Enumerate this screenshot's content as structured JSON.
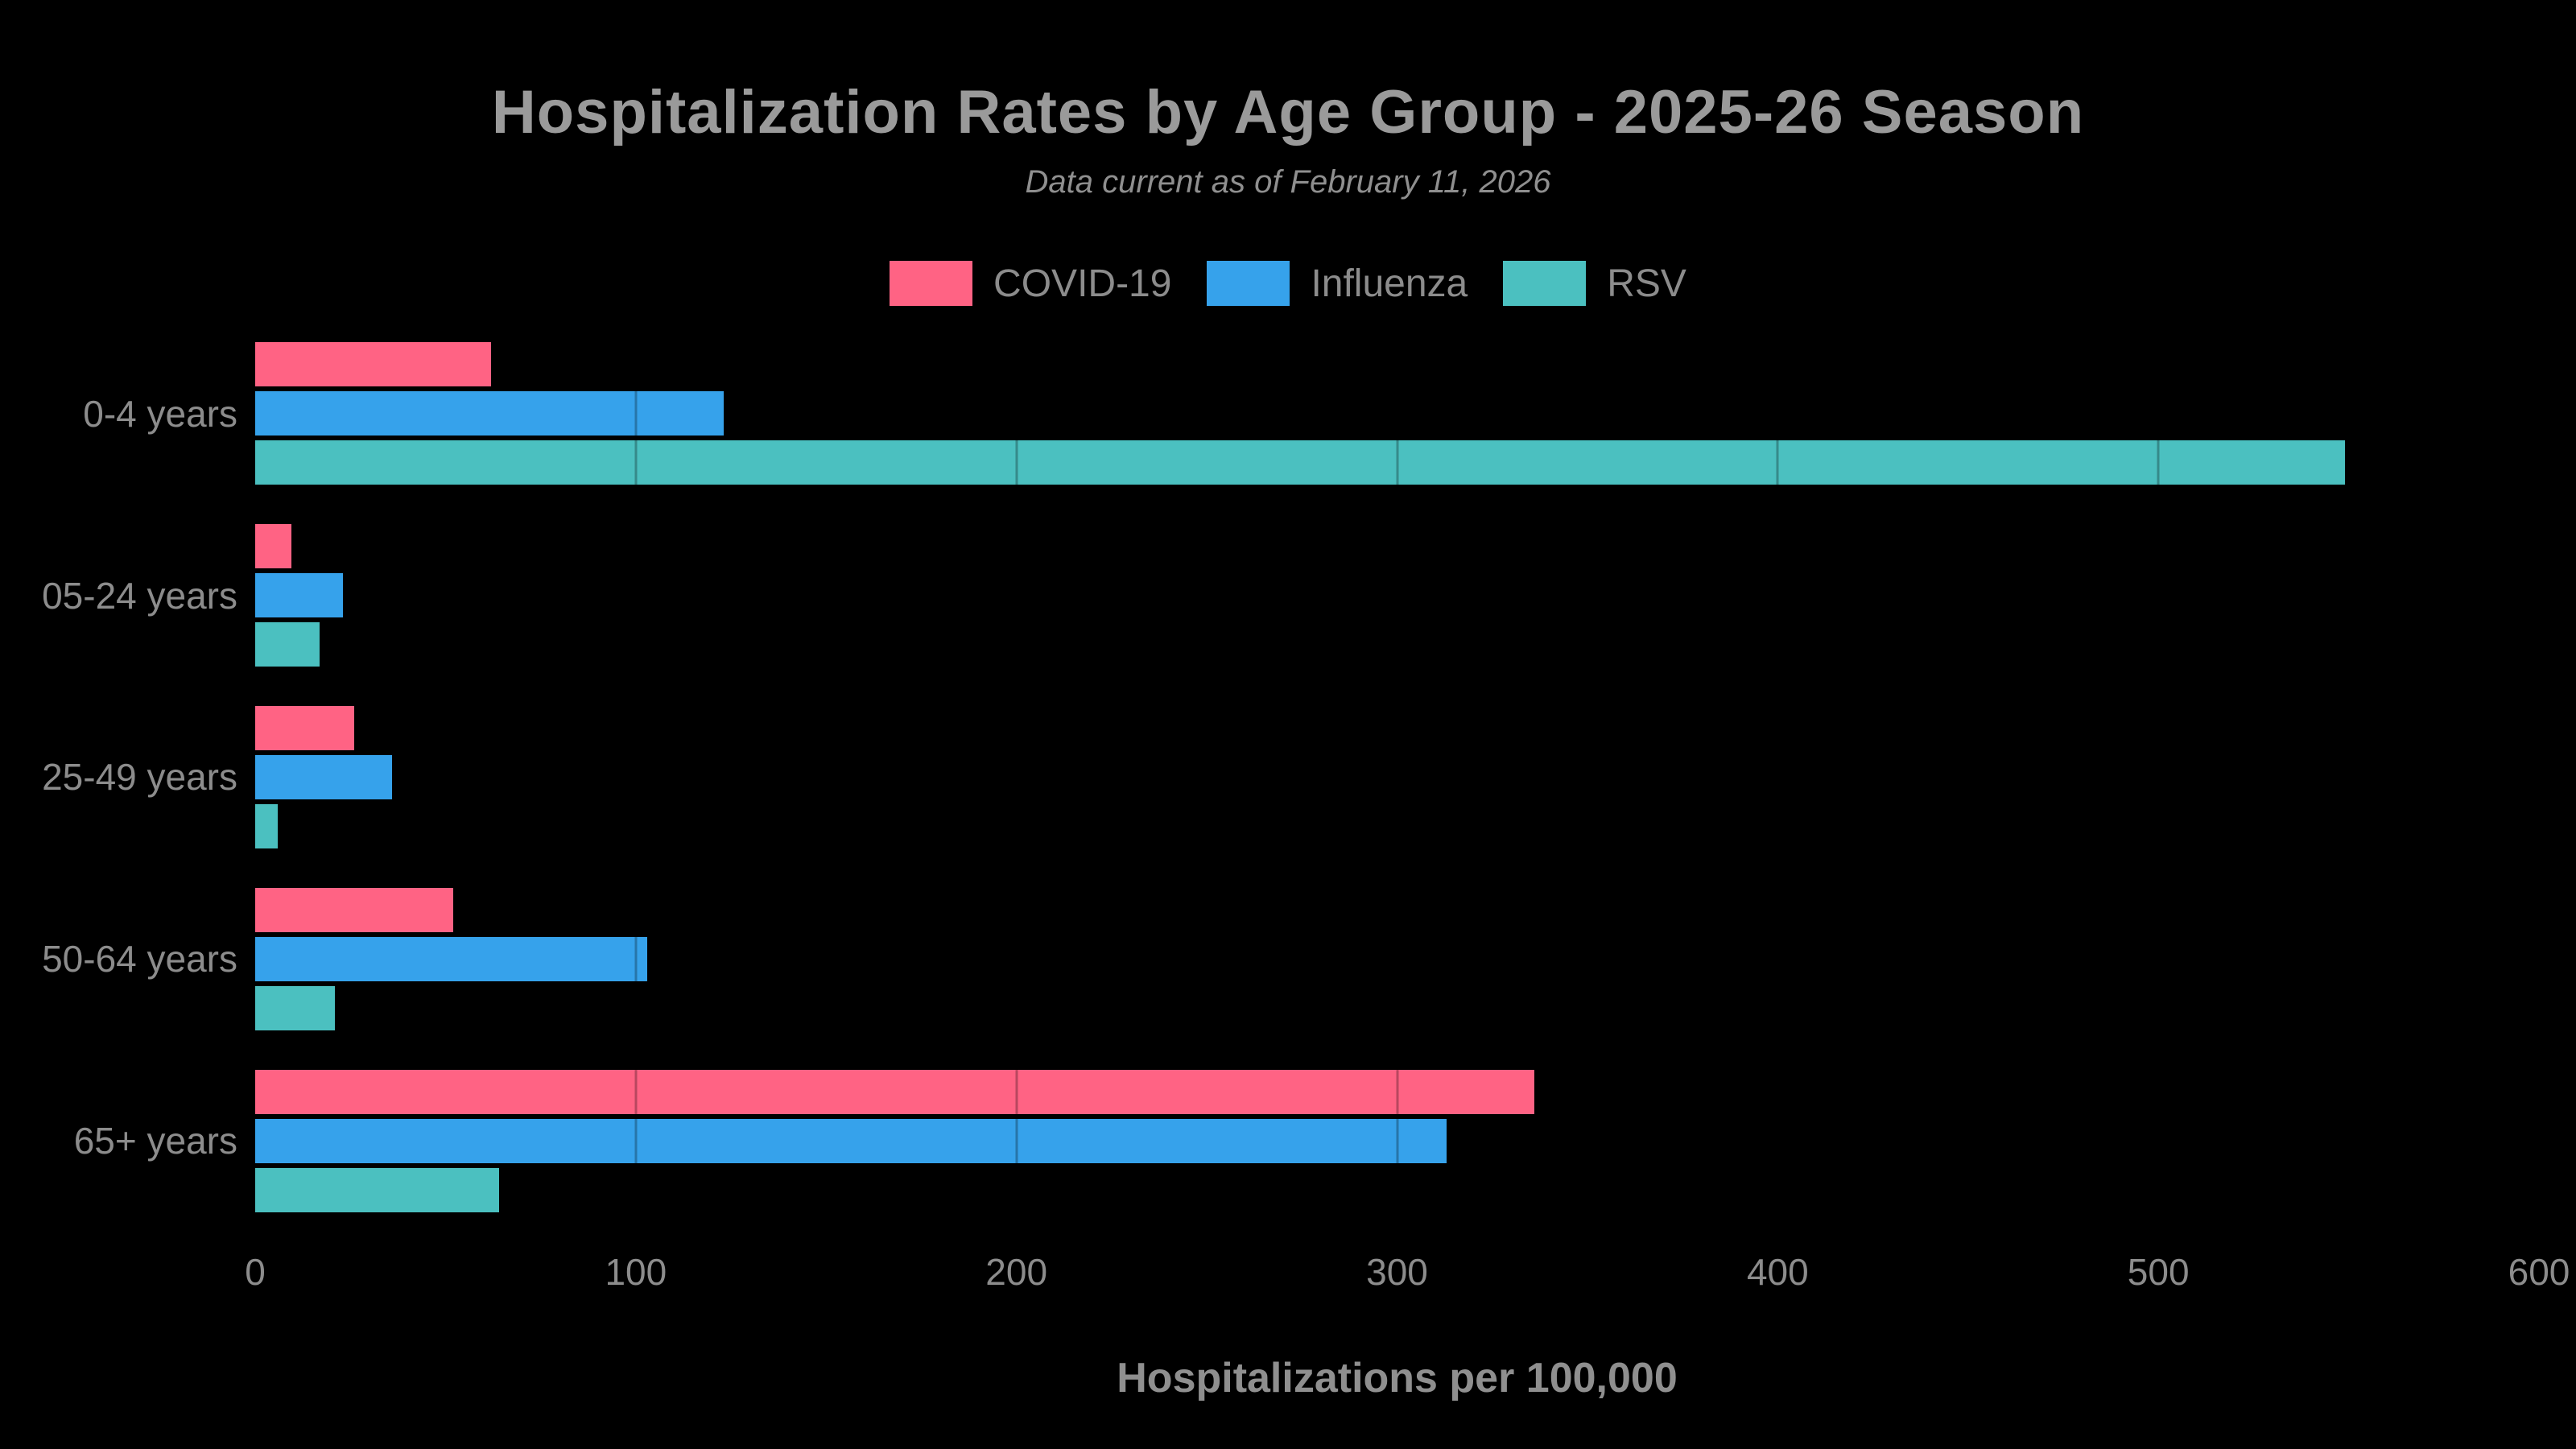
{
  "header": {
    "title": "Hospitalization Rates by Age Group - 2025-26 Season",
    "subtitle": "Data current as of February 11, 2026"
  },
  "colors": {
    "background": "#000000",
    "title_text": "#9a9a9a",
    "label_text": "#8c8c8c",
    "covid": "#FF6384",
    "influenza": "#36A2EB",
    "rsv": "#4BC0C0"
  },
  "chart_data": {
    "type": "bar",
    "orientation": "horizontal",
    "title": "Hospitalization Rates by Age Group - 2025-26 Season",
    "subtitle": "Data current as of February 11, 2026",
    "xlabel": "Hospitalizations per 100,000",
    "ylabel": "",
    "xlim": [
      0,
      600
    ],
    "xticks": [
      0,
      100,
      200,
      300,
      400,
      500,
      600
    ],
    "grid": "subtle dark vertical gridlines visible only over bars",
    "legend_position": "top-center",
    "categories": [
      "0-4 years",
      "05-24 years",
      "25-49 years",
      "50-64 years",
      "65+ years"
    ],
    "series": [
      {
        "name": "COVID-19",
        "color": "#FF6384",
        "values": [
          62,
          9.5,
          26,
          52,
          336
        ]
      },
      {
        "name": "Influenza",
        "color": "#36A2EB",
        "values": [
          123,
          23,
          36,
          103,
          313
        ]
      },
      {
        "name": "RSV",
        "color": "#4BC0C0",
        "values": [
          549,
          17,
          6,
          21,
          64
        ]
      }
    ]
  }
}
